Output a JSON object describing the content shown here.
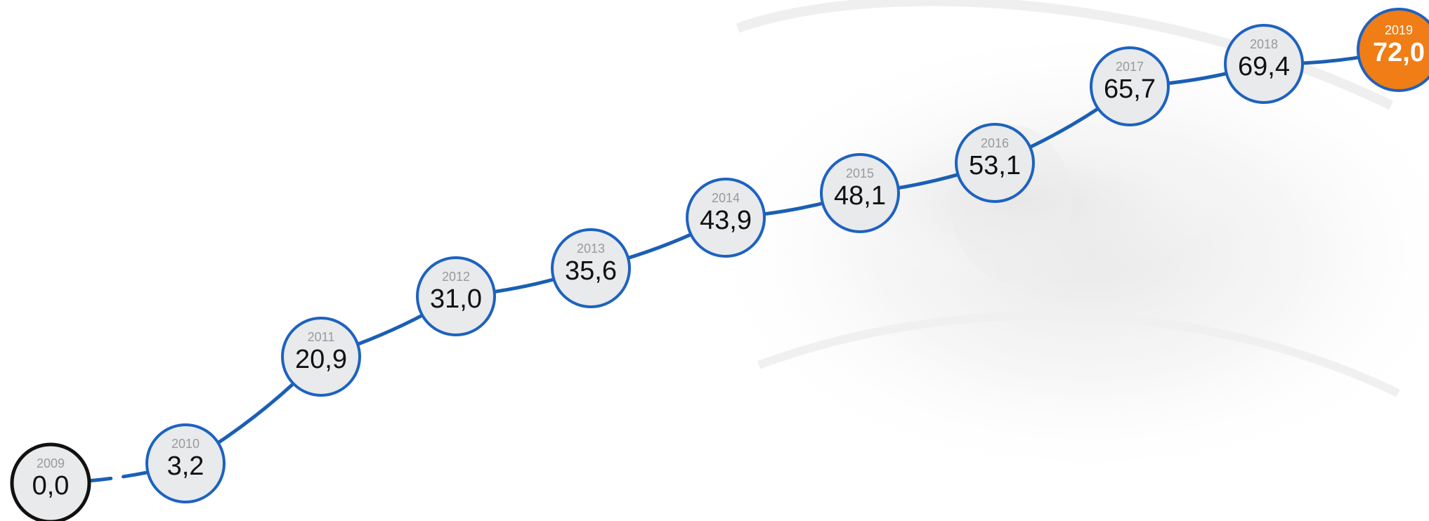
{
  "chart_data": {
    "type": "line",
    "x": [
      "2009",
      "2010",
      "2011",
      "2012",
      "2013",
      "2014",
      "2015",
      "2016",
      "2017",
      "2018",
      "2019"
    ],
    "values": [
      0.0,
      3.2,
      20.9,
      31.0,
      35.6,
      43.9,
      48.1,
      53.1,
      65.7,
      69.4,
      72.0
    ],
    "value_labels": [
      "0,0",
      "3,2",
      "20,9",
      "31,0",
      "35,6",
      "43,9",
      "48,1",
      "53,1",
      "65,7",
      "69,4",
      "72,0"
    ],
    "highlight_year": "2019",
    "line_style_first_segment": "dashed",
    "title": "",
    "xlabel": "",
    "ylabel": "",
    "grid": false,
    "legend": "none"
  },
  "colors": {
    "line": "#1a5fb4",
    "node_fill": "#e8eaeb",
    "node_border": "#1d62c0",
    "start_border": "#111111",
    "highlight_fill": "#f07d15",
    "highlight_border": "#1d62c0",
    "year_text": "#9a9a9a",
    "value_text": "#111111",
    "background_tint": "#f1f1f1"
  }
}
